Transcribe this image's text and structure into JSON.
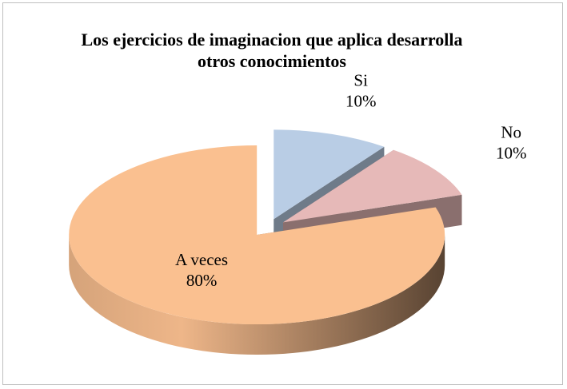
{
  "chart_data": {
    "type": "pie3d",
    "title": "Los ejercicios de imaginacion que aplica desarrolla otros conocimientos",
    "categories": [
      "Si",
      "No",
      "A veces"
    ],
    "values": [
      10,
      10,
      80
    ],
    "value_labels": [
      "10%",
      "10%",
      "80%"
    ],
    "colors": [
      "#b9cde5",
      "#e6b9b8",
      "#fac090"
    ]
  }
}
